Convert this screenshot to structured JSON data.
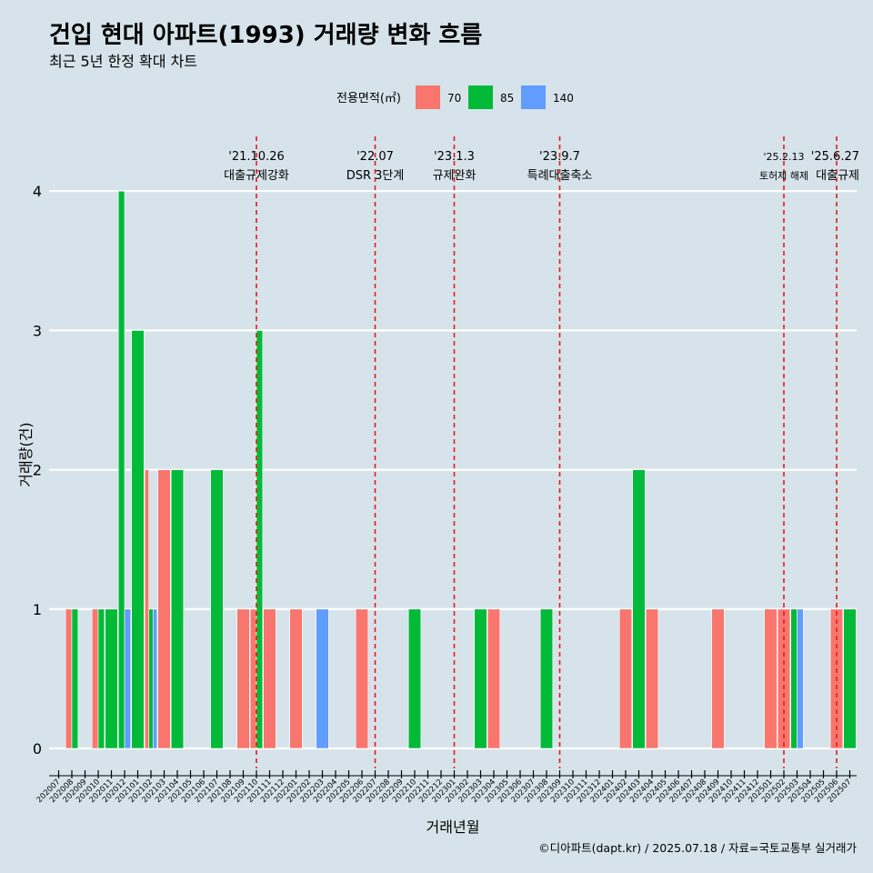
{
  "title": "건입 현대 아파트(1993) 거래량 변화 흐름",
  "subtitle": "최근 5년 한정 확대 차트",
  "caption": "©디아파트(dapt.kr) / 2025.07.18 / 자료=국토교통부 실거래가",
  "colors": {
    "background": "#d6e3ea",
    "grid": "#ffffff",
    "vline": "#e8191b"
  },
  "chart_data": {
    "type": "bar",
    "xlabel": "거래년월",
    "ylabel": "거래량(건)",
    "ylim": [
      0,
      4
    ],
    "yticks": [
      0,
      1,
      2,
      3,
      4
    ],
    "legend": {
      "title": "전용면적(㎡)",
      "position": "top",
      "entries": [
        {
          "name": "70",
          "color": "#f8766d"
        },
        {
          "name": "85",
          "color": "#00ba38"
        },
        {
          "name": "140",
          "color": "#619cff"
        }
      ]
    },
    "categories": [
      "202007",
      "202008",
      "202009",
      "202010",
      "202011",
      "202012",
      "202101",
      "202102",
      "202103",
      "202104",
      "202105",
      "202106",
      "202107",
      "202108",
      "202109",
      "202110",
      "202111",
      "202112",
      "202201",
      "202202",
      "202203",
      "202204",
      "202205",
      "202206",
      "202207",
      "202208",
      "202209",
      "202210",
      "202211",
      "202212",
      "202301",
      "202302",
      "202303",
      "202304",
      "202305",
      "202306",
      "202307",
      "202308",
      "202309",
      "202310",
      "202311",
      "202312",
      "202401",
      "202402",
      "202403",
      "202404",
      "202405",
      "202406",
      "202407",
      "202408",
      "202409",
      "202410",
      "202411",
      "202412",
      "202501",
      "202502",
      "202503",
      "202504",
      "202505",
      "202506",
      "202507"
    ],
    "bars": [
      {
        "month": "202008",
        "area": "70",
        "value": 1,
        "slot": 0,
        "slots": 2
      },
      {
        "month": "202008",
        "area": "85",
        "value": 1,
        "slot": 1,
        "slots": 2
      },
      {
        "month": "202010",
        "area": "70",
        "value": 1,
        "slot": 0,
        "slots": 2
      },
      {
        "month": "202010",
        "area": "85",
        "value": 1,
        "slot": 1,
        "slots": 2
      },
      {
        "month": "202011",
        "area": "85",
        "value": 1,
        "slot": 0,
        "slots": 1
      },
      {
        "month": "202012",
        "area": "85",
        "value": 4,
        "slot": 0,
        "slots": 2
      },
      {
        "month": "202012",
        "area": "140",
        "value": 1,
        "slot": 1,
        "slots": 2
      },
      {
        "month": "202101",
        "area": "85",
        "value": 3,
        "slot": 0,
        "slots": 1
      },
      {
        "month": "202102",
        "area": "70",
        "value": 2,
        "slot": 0,
        "slots": 3
      },
      {
        "month": "202102",
        "area": "85",
        "value": 1,
        "slot": 1,
        "slots": 3
      },
      {
        "month": "202102",
        "area": "140",
        "value": 1,
        "slot": 2,
        "slots": 3
      },
      {
        "month": "202103",
        "area": "70",
        "value": 2,
        "slot": 0,
        "slots": 1
      },
      {
        "month": "202104",
        "area": "85",
        "value": 2,
        "slot": 0,
        "slots": 1
      },
      {
        "month": "202107",
        "area": "85",
        "value": 2,
        "slot": 0,
        "slots": 1
      },
      {
        "month": "202109",
        "area": "70",
        "value": 1,
        "slot": 0,
        "slots": 1
      },
      {
        "month": "202110",
        "area": "70",
        "value": 1,
        "slot": 0,
        "slots": 2
      },
      {
        "month": "202110",
        "area": "85",
        "value": 3,
        "slot": 1,
        "slots": 2
      },
      {
        "month": "202111",
        "area": "70",
        "value": 1,
        "slot": 0,
        "slots": 1
      },
      {
        "month": "202201",
        "area": "70",
        "value": 1,
        "slot": 0,
        "slots": 1
      },
      {
        "month": "202203",
        "area": "140",
        "value": 1,
        "slot": 0,
        "slots": 1
      },
      {
        "month": "202206",
        "area": "70",
        "value": 1,
        "slot": 0,
        "slots": 1
      },
      {
        "month": "202210",
        "area": "85",
        "value": 1,
        "slot": 0,
        "slots": 1
      },
      {
        "month": "202303",
        "area": "85",
        "value": 1,
        "slot": 0,
        "slots": 1
      },
      {
        "month": "202304",
        "area": "70",
        "value": 1,
        "slot": 0,
        "slots": 1
      },
      {
        "month": "202308",
        "area": "85",
        "value": 1,
        "slot": 0,
        "slots": 1
      },
      {
        "month": "202402",
        "area": "70",
        "value": 1,
        "slot": 0,
        "slots": 1
      },
      {
        "month": "202403",
        "area": "85",
        "value": 2,
        "slot": 0,
        "slots": 1
      },
      {
        "month": "202404",
        "area": "70",
        "value": 1,
        "slot": 0,
        "slots": 1
      },
      {
        "month": "202409",
        "area": "70",
        "value": 1,
        "slot": 0,
        "slots": 1
      },
      {
        "month": "202501",
        "area": "70",
        "value": 1,
        "slot": 0,
        "slots": 1
      },
      {
        "month": "202502",
        "area": "70",
        "value": 1,
        "slot": 0,
        "slots": 1
      },
      {
        "month": "202503",
        "area": "85",
        "value": 1,
        "slot": 0,
        "slots": 2
      },
      {
        "month": "202503",
        "area": "140",
        "value": 1,
        "slot": 1,
        "slots": 2
      },
      {
        "month": "202506",
        "area": "70",
        "value": 1,
        "slot": 0,
        "slots": 1
      },
      {
        "month": "202507",
        "area": "85",
        "value": 1,
        "slot": 0,
        "slots": 1
      }
    ],
    "events": [
      {
        "x": "202110",
        "date": "'21.10.26",
        "label": "대출규제강화"
      },
      {
        "x": "202207",
        "date": "'22.07",
        "label": "DSR 3단계"
      },
      {
        "x": "202301",
        "date": "'23.1.3",
        "label": "규제완화"
      },
      {
        "x": "202309",
        "date": "'23.9.7",
        "label": "특례대출축소"
      },
      {
        "x": "202502",
        "date": "'25.2.13",
        "label": "토허제 해제"
      },
      {
        "x": "202506",
        "date": "'25.6.27",
        "label": "대출규제"
      }
    ]
  }
}
